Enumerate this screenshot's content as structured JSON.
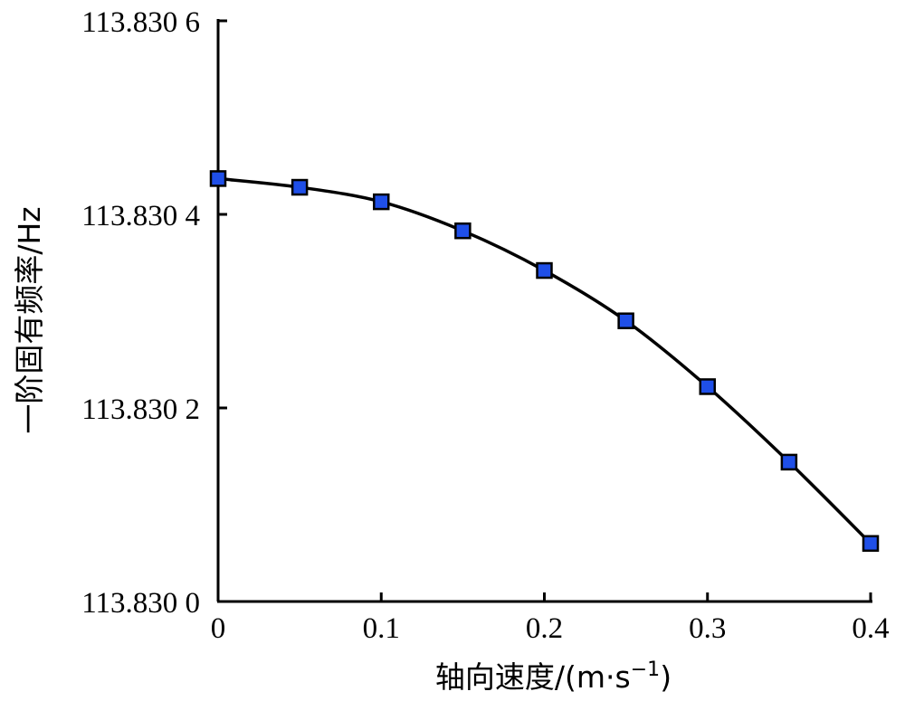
{
  "chart_data": {
    "type": "line",
    "title": "",
    "xlabel": "轴向速度/(m·s",
    "xlabel_sup": "−1",
    "xlabel_end": ")",
    "ylabel": "一阶固有频率/Hz",
    "xlim": [
      0,
      0.4
    ],
    "ylim": [
      113.83,
      113.8306
    ],
    "x_ticks": [
      0,
      0.1,
      0.2,
      0.3,
      0.4
    ],
    "x_tick_labels": [
      "0",
      "0.1",
      "0.2",
      "0.3",
      "0.4"
    ],
    "y_ticks": [
      113.83,
      113.8302,
      113.8304,
      113.8306
    ],
    "y_tick_labels": [
      "113.830 0",
      "113.830 2",
      "113.830 4",
      "113.830 6"
    ],
    "grid": false,
    "series": [
      {
        "color": "#1f4fe8",
        "marker": "square",
        "x": [
          0,
          0.05,
          0.1,
          0.15,
          0.2,
          0.25,
          0.3,
          0.35,
          0.4
        ],
        "y": [
          113.830437,
          113.830428,
          113.830413,
          113.830383,
          113.830342,
          113.83029,
          113.830222,
          113.830144,
          113.83006
        ]
      }
    ]
  }
}
